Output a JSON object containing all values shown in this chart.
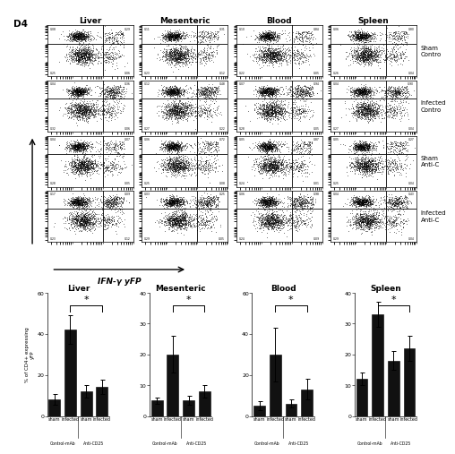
{
  "title_label": "D4",
  "col_headers": [
    "Liver",
    "Mesenteric",
    "Blood",
    "Spleen"
  ],
  "row_labels": [
    "Sham\nContro",
    "Infected\nContro",
    "Sham\nAnti-C",
    "Infected\nAnti-C"
  ],
  "x_axis_label": "IFN-γ yFP",
  "y_axis_label": "% of CD4+ expressing\nyFP",
  "bar_groups": {
    "Liver": {
      "values": [
        8,
        42,
        12,
        14
      ],
      "errors": [
        2.5,
        7,
        3,
        3.5
      ],
      "ylim": [
        0,
        60
      ],
      "yticks": [
        0,
        20,
        40,
        60
      ]
    },
    "Mesenteric": {
      "values": [
        5,
        20,
        5,
        8
      ],
      "errors": [
        1,
        6,
        1.5,
        2
      ],
      "ylim": [
        0,
        40
      ],
      "yticks": [
        0,
        10,
        20,
        30,
        40
      ]
    },
    "Blood": {
      "values": [
        5,
        30,
        6,
        13
      ],
      "errors": [
        2,
        13,
        2,
        5
      ],
      "ylim": [
        0,
        60
      ],
      "yticks": [
        0,
        20,
        40,
        60
      ]
    },
    "Spleen": {
      "values": [
        12,
        33,
        18,
        22
      ],
      "errors": [
        2,
        4,
        3,
        4
      ],
      "ylim": [
        0,
        40
      ],
      "yticks": [
        0,
        10,
        20,
        30,
        40
      ]
    }
  },
  "x_tick_labels": [
    "sham",
    "infected",
    "sham",
    "infected"
  ],
  "x_group_labels": [
    "Control-mAb",
    "Anti-CD25"
  ],
  "bar_color": "#111111",
  "background_color": "#ffffff",
  "dot_plot_rows": 4,
  "dot_plot_cols": 4,
  "corner_vals": [
    [
      [
        0.29,
        0.08,
        0.06,
        0.25
      ],
      [
        0.31,
        0.11,
        0.12,
        0.23
      ],
      [
        0.84,
        0.1,
        0.05,
        0.22
      ],
      [
        0.8,
        0.06,
        0.04,
        0.26
      ]
    ],
    [
      [
        0.36,
        0.04,
        0.06,
        0.32
      ],
      [
        0.48,
        0.12,
        0.22,
        0.27
      ],
      [
        0.94,
        0.07,
        0.05,
        0.28
      ],
      [
        0.9,
        0.04,
        0.04,
        0.27
      ]
    ],
    [
      [
        0.07,
        0.04,
        0.05,
        0.28
      ],
      [
        0.72,
        0.06,
        0.08,
        0.25
      ],
      [
        0.87,
        0.05,
        0.01,
        0.24
      ],
      [
        0.27,
        0.05,
        0.04,
        0.25
      ]
    ],
    [
      [
        0.09,
        0.17,
        0.12,
        0.23
      ],
      [
        0.25,
        0.03,
        0.05,
        0.29
      ],
      [
        0.98,
        0.06,
        0.09,
        0.24
      ],
      [
        0.43,
        0.04,
        0.04,
        0.29
      ]
    ]
  ]
}
